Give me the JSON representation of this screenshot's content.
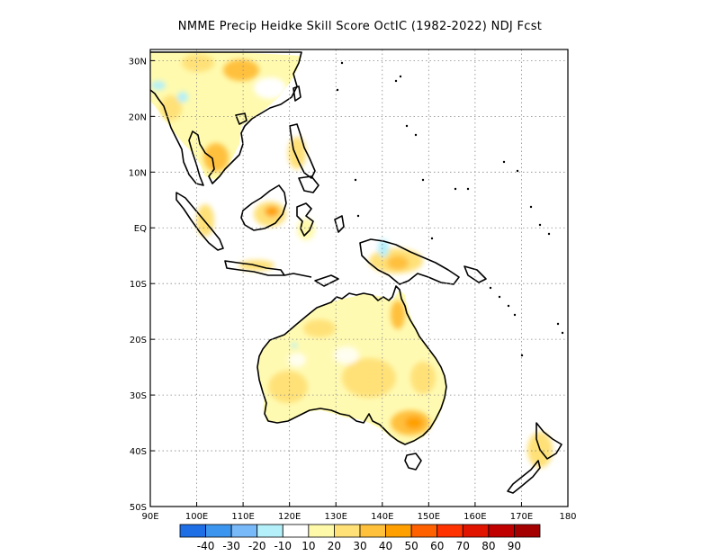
{
  "title": "NMME Precip Heidke Skill Score OctIC (1982-2022) NDJ Fcst",
  "map": {
    "lon_range": [
      90,
      180
    ],
    "lat_range": [
      -50,
      32
    ],
    "lon_ticks": [
      {
        "value": 90,
        "label": "90E"
      },
      {
        "value": 100,
        "label": "100E"
      },
      {
        "value": 110,
        "label": "110E"
      },
      {
        "value": 120,
        "label": "120E"
      },
      {
        "value": 130,
        "label": "130E"
      },
      {
        "value": 140,
        "label": "140E"
      },
      {
        "value": 150,
        "label": "150E"
      },
      {
        "value": 160,
        "label": "160E"
      },
      {
        "value": 170,
        "label": "170E"
      },
      {
        "value": 180,
        "label": "180"
      }
    ],
    "lat_ticks": [
      {
        "value": 30,
        "label": "30N"
      },
      {
        "value": 20,
        "label": "20N"
      },
      {
        "value": 10,
        "label": "10N"
      },
      {
        "value": 0,
        "label": "EQ"
      },
      {
        "value": -10,
        "label": "10S"
      },
      {
        "value": -20,
        "label": "20S"
      },
      {
        "value": -30,
        "label": "30S"
      },
      {
        "value": -40,
        "label": "40S"
      },
      {
        "value": -50,
        "label": "50S"
      }
    ],
    "grid": true
  },
  "colorbar": {
    "colors": [
      "#1e6ee6",
      "#3c96f0",
      "#78b9fa",
      "#b4f0fa",
      "#ffffff",
      "#fffaaa",
      "#ffe178",
      "#ffc03c",
      "#ffa000",
      "#ff6000",
      "#ff3200",
      "#e11400",
      "#c00000",
      "#a50000"
    ],
    "labels": [
      "-40",
      "-30",
      "-20",
      "-10",
      "10",
      "20",
      "30",
      "40",
      "50",
      "60",
      "70",
      "80",
      "90"
    ]
  },
  "skill_patches": [
    {
      "region": "Australia central",
      "lon": 138,
      "lat": -24,
      "score": 20
    },
    {
      "region": "Australia east coast",
      "lon": 149,
      "lat": -35,
      "score": 50
    },
    {
      "region": "Australia north Cape York",
      "lon": 143,
      "lat": -15,
      "score": 40
    },
    {
      "region": "Southern China",
      "lon": 109,
      "lat": 28,
      "score": 30
    },
    {
      "region": "Indochina",
      "lon": 104,
      "lat": 15,
      "score": 30
    },
    {
      "region": "Borneo",
      "lon": 113,
      "lat": 0,
      "score": 40
    },
    {
      "region": "New Guinea",
      "lon": 143,
      "lat": -6,
      "score": 30
    },
    {
      "region": "Western Australia",
      "lon": 122,
      "lat": -27,
      "score": 20
    },
    {
      "region": "Western Australia NW",
      "lon": 126,
      "lat": -19,
      "score": 30
    },
    {
      "region": "Philippines",
      "lon": 122,
      "lat": 13,
      "score": 20
    }
  ]
}
